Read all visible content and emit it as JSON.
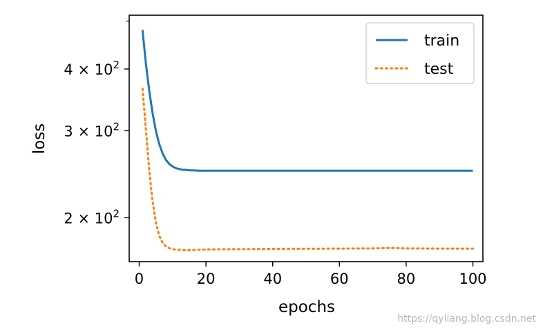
{
  "chart_data": {
    "type": "line",
    "xlabel": "epochs",
    "ylabel": "loss",
    "xlim": [
      -3,
      103
    ],
    "ylim": [
      163,
      514
    ],
    "yscale": "log",
    "grid": false,
    "legend_position": "upper right",
    "x_ticks": [
      {
        "value": 0,
        "label": "0"
      },
      {
        "value": 20,
        "label": "20"
      },
      {
        "value": 40,
        "label": "40"
      },
      {
        "value": 60,
        "label": "60"
      },
      {
        "value": 80,
        "label": "80"
      },
      {
        "value": 100,
        "label": "100"
      }
    ],
    "y_major_ticks": [
      {
        "value": 200,
        "coef": "2",
        "base": "10",
        "exp": "2"
      },
      {
        "value": 300,
        "coef": "3",
        "base": "10",
        "exp": "2"
      },
      {
        "value": 400,
        "coef": "4",
        "base": "10",
        "exp": "2"
      }
    ],
    "y_minor_ticks": [
      500
    ],
    "series": [
      {
        "name": "train",
        "color": "#1f77b4",
        "style": "solid",
        "x": [
          1,
          2,
          3,
          4,
          5,
          6,
          7,
          8,
          9,
          10,
          11,
          12,
          13,
          14,
          15,
          16,
          18,
          20,
          25,
          30,
          40,
          50,
          60,
          70,
          80,
          90,
          100
        ],
        "y": [
          480,
          410,
          362,
          326,
          300,
          282,
          270,
          262,
          257,
          254,
          252,
          251,
          250,
          250,
          249.5,
          249.5,
          249,
          249,
          249,
          249,
          249,
          249,
          249,
          249,
          249,
          249,
          249
        ]
      },
      {
        "name": "test",
        "color": "#ff7f0e",
        "style": "dotted",
        "x": [
          1,
          2,
          3,
          4,
          5,
          6,
          7,
          8,
          9,
          10,
          11,
          12,
          13,
          14,
          15,
          16,
          18,
          20,
          25,
          30,
          40,
          50,
          60,
          70,
          75,
          80,
          90,
          100
        ],
        "y": [
          365,
          302,
          250,
          216,
          196,
          184,
          178,
          175,
          173.5,
          172.8,
          172.4,
          172.2,
          172,
          172,
          172,
          172.1,
          172.3,
          172.5,
          172.7,
          172.8,
          173,
          173.1,
          173.2,
          173.4,
          173.7,
          173.4,
          173.2,
          173.2
        ]
      }
    ]
  },
  "watermark": "https://qyliang.blog.csdn.net"
}
